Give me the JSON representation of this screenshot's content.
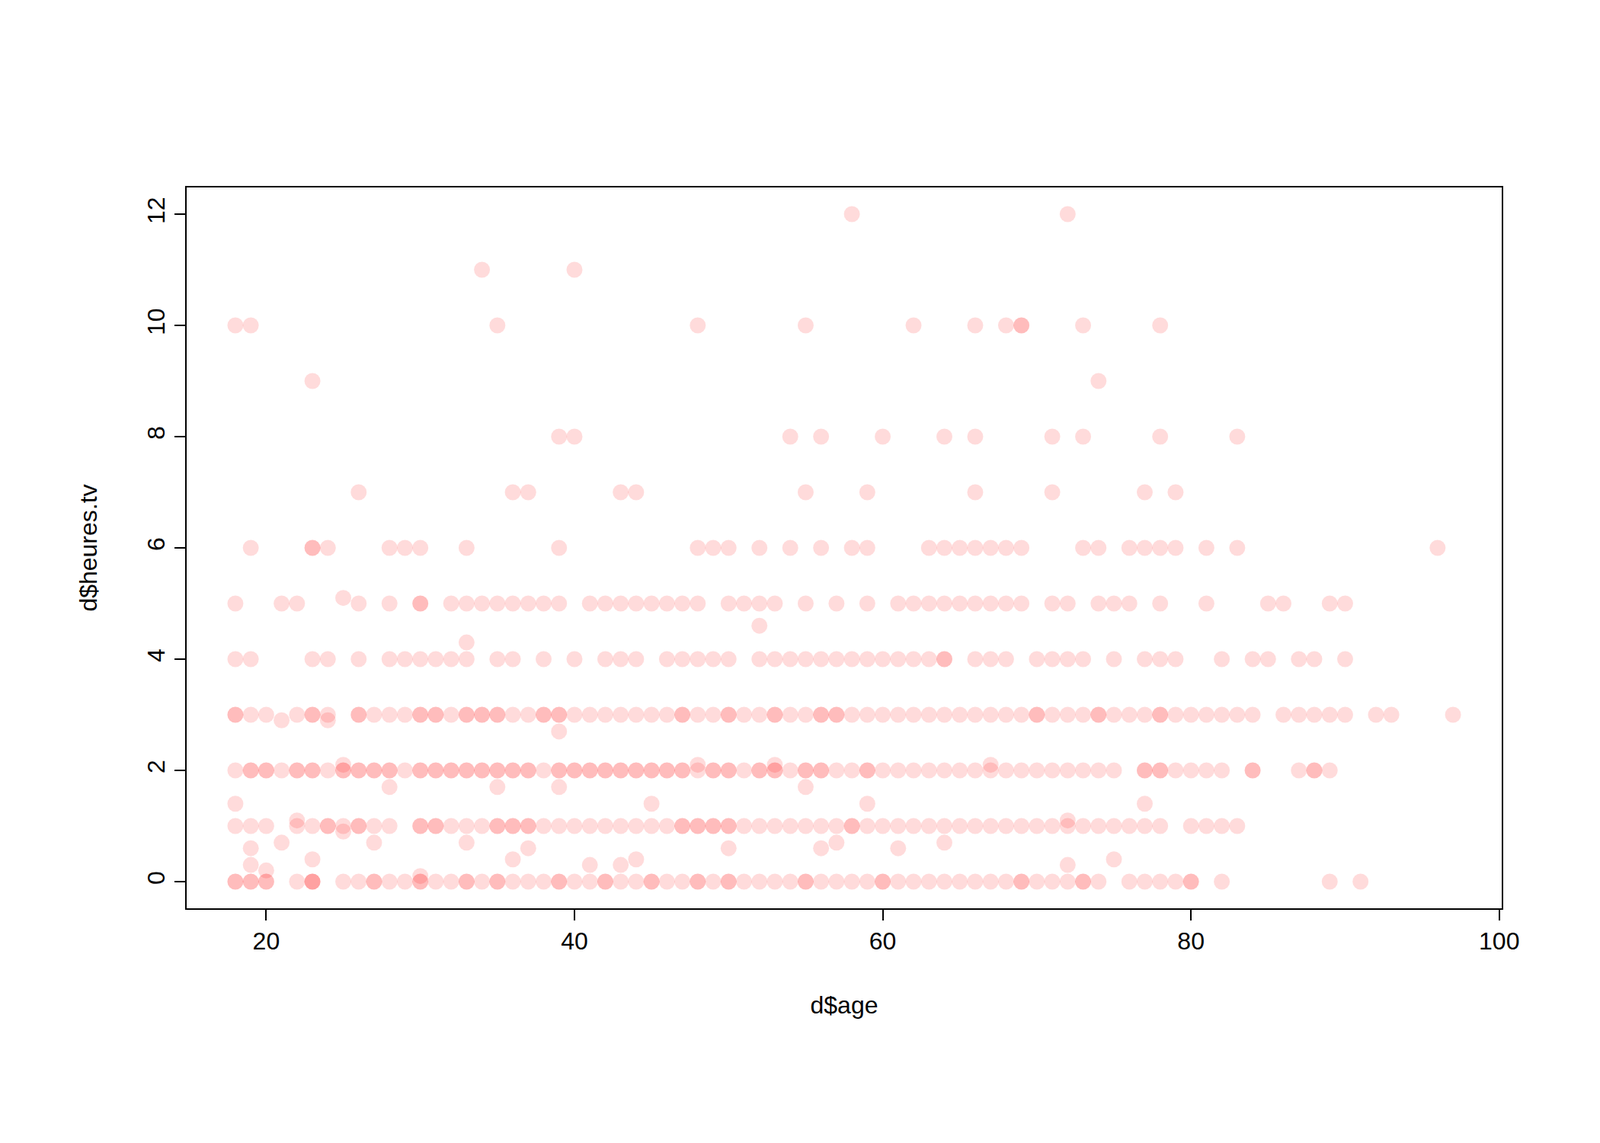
{
  "chart_data": {
    "type": "scatter",
    "x_label": "d$age",
    "y_label": "d$heures.tv",
    "color": "#ff0000",
    "marker": "circle",
    "grid": false,
    "xlim": [
      14.84,
      100.16
    ],
    "ylim": [
      -0.48,
      12.48
    ],
    "xticks": [
      20,
      40,
      60,
      80,
      100
    ],
    "yticks": [
      0,
      2,
      4,
      6,
      8,
      10,
      12
    ],
    "x": [
      18,
      18,
      19,
      19,
      20,
      20,
      22,
      23,
      23,
      23,
      25,
      26,
      27,
      27,
      28,
      29,
      30,
      30,
      31,
      32,
      33,
      33,
      34,
      35,
      35,
      36,
      37,
      38,
      39,
      39,
      40,
      41,
      42,
      42,
      43,
      44,
      45,
      45,
      46,
      47,
      48,
      48,
      49,
      50,
      50,
      51,
      52,
      53,
      54,
      55,
      55,
      56,
      57,
      58,
      59,
      60,
      60,
      61,
      62,
      63,
      64,
      65,
      66,
      67,
      68,
      69,
      69,
      70,
      71,
      72,
      73,
      73,
      74,
      76,
      77,
      78,
      79,
      80,
      80,
      82,
      89,
      91,
      18,
      19,
      20,
      22,
      23,
      24,
      24,
      25,
      26,
      26,
      27,
      28,
      30,
      30,
      31,
      31,
      32,
      33,
      34,
      35,
      35,
      36,
      36,
      37,
      37,
      38,
      39,
      40,
      41,
      42,
      43,
      44,
      45,
      46,
      47,
      47,
      48,
      48,
      49,
      49,
      50,
      50,
      51,
      52,
      53,
      54,
      55,
      56,
      57,
      58,
      58,
      59,
      60,
      61,
      62,
      63,
      64,
      65,
      66,
      67,
      68,
      69,
      70,
      71,
      72,
      73,
      74,
      75,
      76,
      77,
      78,
      80,
      81,
      82,
      83,
      18,
      19,
      19,
      20,
      20,
      21,
      22,
      22,
      23,
      23,
      24,
      25,
      25,
      26,
      26,
      27,
      27,
      28,
      28,
      29,
      30,
      30,
      31,
      31,
      32,
      32,
      33,
      33,
      34,
      34,
      35,
      35,
      36,
      36,
      37,
      37,
      38,
      39,
      39,
      40,
      40,
      41,
      41,
      42,
      42,
      43,
      43,
      44,
      44,
      45,
      45,
      46,
      46,
      47,
      47,
      48,
      49,
      49,
      50,
      50,
      51,
      52,
      52,
      53,
      53,
      54,
      55,
      55,
      56,
      56,
      57,
      58,
      59,
      59,
      60,
      61,
      62,
      63,
      64,
      65,
      66,
      67,
      68,
      69,
      70,
      71,
      72,
      73,
      74,
      75,
      77,
      77,
      78,
      78,
      79,
      80,
      81,
      82,
      84,
      84,
      87,
      88,
      88,
      89,
      18,
      18,
      19,
      20,
      22,
      23,
      23,
      24,
      26,
      26,
      27,
      28,
      29,
      30,
      30,
      31,
      31,
      32,
      33,
      33,
      34,
      34,
      35,
      35,
      36,
      37,
      38,
      38,
      39,
      39,
      40,
      41,
      42,
      43,
      44,
      45,
      46,
      47,
      47,
      48,
      49,
      50,
      50,
      51,
      52,
      53,
      53,
      54,
      55,
      56,
      56,
      57,
      57,
      58,
      59,
      60,
      61,
      62,
      63,
      64,
      65,
      66,
      67,
      68,
      69,
      70,
      70,
      71,
      72,
      73,
      74,
      74,
      75,
      76,
      77,
      78,
      78,
      79,
      80,
      81,
      82,
      83,
      84,
      86,
      87,
      88,
      89,
      90,
      92,
      93,
      97,
      18,
      19,
      23,
      24,
      26,
      28,
      29,
      30,
      31,
      32,
      33,
      35,
      36,
      38,
      40,
      42,
      43,
      44,
      46,
      47,
      48,
      49,
      50,
      52,
      53,
      54,
      55,
      56,
      57,
      58,
      59,
      60,
      61,
      62,
      63,
      64,
      64,
      66,
      67,
      68,
      70,
      71,
      72,
      73,
      75,
      77,
      78,
      79,
      82,
      84,
      85,
      87,
      88,
      90,
      18,
      21,
      22,
      26,
      28,
      30,
      30,
      32,
      33,
      34,
      35,
      36,
      37,
      38,
      39,
      41,
      42,
      43,
      44,
      45,
      46,
      47,
      48,
      50,
      51,
      52,
      53,
      55,
      57,
      59,
      61,
      62,
      63,
      64,
      65,
      66,
      67,
      68,
      69,
      71,
      72,
      74,
      75,
      76,
      78,
      81,
      85,
      86,
      89,
      90,
      19,
      23,
      23,
      24,
      28,
      29,
      30,
      33,
      39,
      48,
      49,
      50,
      52,
      54,
      56,
      58,
      59,
      63,
      64,
      65,
      66,
      67,
      68,
      69,
      73,
      74,
      76,
      77,
      78,
      79,
      81,
      83,
      96,
      26,
      36,
      37,
      43,
      44,
      55,
      59,
      66,
      71,
      77,
      79,
      39,
      40,
      54,
      56,
      60,
      64,
      66,
      71,
      73,
      78,
      83,
      23,
      74,
      18,
      19,
      35,
      48,
      55,
      62,
      66,
      68,
      69,
      69,
      73,
      78,
      34,
      40,
      58,
      72,
      18,
      19,
      19,
      20,
      21,
      21,
      22,
      24,
      25,
      25,
      25,
      27,
      28,
      33,
      33,
      35,
      37,
      39,
      39,
      41,
      44,
      45,
      50,
      52,
      55,
      56,
      57,
      59,
      61,
      64,
      67,
      72,
      75,
      77,
      72,
      48,
      53,
      23,
      30,
      36,
      43
    ],
    "values": [
      0,
      0,
      0,
      0,
      0,
      0,
      0,
      0,
      0,
      0,
      0,
      0,
      0,
      0,
      0,
      0,
      0,
      0,
      0,
      0,
      0,
      0,
      0,
      0,
      0,
      0,
      0,
      0,
      0,
      0,
      0,
      0,
      0,
      0,
      0,
      0,
      0,
      0,
      0,
      0,
      0,
      0,
      0,
      0,
      0,
      0,
      0,
      0,
      0,
      0,
      0,
      0,
      0,
      0,
      0,
      0,
      0,
      0,
      0,
      0,
      0,
      0,
      0,
      0,
      0,
      0,
      0,
      0,
      0,
      0,
      0,
      0,
      0,
      0,
      0,
      0,
      0,
      0,
      0,
      0,
      0,
      0,
      1,
      1,
      1,
      1,
      1,
      1,
      1,
      1,
      1,
      1,
      1,
      1,
      1,
      1,
      1,
      1,
      1,
      1,
      1,
      1,
      1,
      1,
      1,
      1,
      1,
      1,
      1,
      1,
      1,
      1,
      1,
      1,
      1,
      1,
      1,
      1,
      1,
      1,
      1,
      1,
      1,
      1,
      1,
      1,
      1,
      1,
      1,
      1,
      1,
      1,
      1,
      1,
      1,
      1,
      1,
      1,
      1,
      1,
      1,
      1,
      1,
      1,
      1,
      1,
      1,
      1,
      1,
      1,
      1,
      1,
      1,
      1,
      1,
      1,
      1,
      2,
      2,
      2,
      2,
      2,
      2,
      2,
      2,
      2,
      2,
      2,
      2,
      2,
      2,
      2,
      2,
      2,
      2,
      2,
      2,
      2,
      2,
      2,
      2,
      2,
      2,
      2,
      2,
      2,
      2,
      2,
      2,
      2,
      2,
      2,
      2,
      2,
      2,
      2,
      2,
      2,
      2,
      2,
      2,
      2,
      2,
      2,
      2,
      2,
      2,
      2,
      2,
      2,
      2,
      2,
      2,
      2,
      2,
      2,
      2,
      2,
      2,
      2,
      2,
      2,
      2,
      2,
      2,
      2,
      2,
      2,
      2,
      2,
      2,
      2,
      2,
      2,
      2,
      2,
      2,
      2,
      2,
      2,
      2,
      2,
      2,
      2,
      2,
      2,
      2,
      2,
      2,
      2,
      2,
      2,
      2,
      2,
      2,
      2,
      2,
      2,
      2,
      2,
      2,
      3,
      3,
      3,
      3,
      3,
      3,
      3,
      3,
      3,
      3,
      3,
      3,
      3,
      3,
      3,
      3,
      3,
      3,
      3,
      3,
      3,
      3,
      3,
      3,
      3,
      3,
      3,
      3,
      3,
      3,
      3,
      3,
      3,
      3,
      3,
      3,
      3,
      3,
      3,
      3,
      3,
      3,
      3,
      3,
      3,
      3,
      3,
      3,
      3,
      3,
      3,
      3,
      3,
      3,
      3,
      3,
      3,
      3,
      3,
      3,
      3,
      3,
      3,
      3,
      3,
      3,
      3,
      3,
      3,
      3,
      3,
      3,
      3,
      3,
      3,
      3,
      3,
      3,
      3,
      3,
      3,
      3,
      3,
      3,
      3,
      3,
      3,
      3,
      3,
      3,
      3,
      4,
      4,
      4,
      4,
      4,
      4,
      4,
      4,
      4,
      4,
      4,
      4,
      4,
      4,
      4,
      4,
      4,
      4,
      4,
      4,
      4,
      4,
      4,
      4,
      4,
      4,
      4,
      4,
      4,
      4,
      4,
      4,
      4,
      4,
      4,
      4,
      4,
      4,
      4,
      4,
      4,
      4,
      4,
      4,
      4,
      4,
      4,
      4,
      4,
      4,
      4,
      4,
      4,
      4,
      5,
      5,
      5,
      5,
      5,
      5,
      5,
      5,
      5,
      5,
      5,
      5,
      5,
      5,
      5,
      5,
      5,
      5,
      5,
      5,
      5,
      5,
      5,
      5,
      5,
      5,
      5,
      5,
      5,
      5,
      5,
      5,
      5,
      5,
      5,
      5,
      5,
      5,
      5,
      5,
      5,
      5,
      5,
      5,
      5,
      5,
      5,
      5,
      5,
      5,
      6,
      6,
      6,
      6,
      6,
      6,
      6,
      6,
      6,
      6,
      6,
      6,
      6,
      6,
      6,
      6,
      6,
      6,
      6,
      6,
      6,
      6,
      6,
      6,
      6,
      6,
      6,
      6,
      6,
      6,
      6,
      6,
      6,
      7,
      7,
      7,
      7,
      7,
      7,
      7,
      7,
      7,
      7,
      7,
      8,
      8,
      8,
      8,
      8,
      8,
      8,
      8,
      8,
      8,
      8,
      9,
      9,
      10,
      10,
      10,
      10,
      10,
      10,
      10,
      10,
      10,
      10,
      10,
      10,
      11,
      11,
      12,
      12,
      1.4,
      0.6,
      0.3,
      0.2,
      0.7,
      2.9,
      1.1,
      2.9,
      5.1,
      0.9,
      2.1,
      0.7,
      1.7,
      4.3,
      0.7,
      1.7,
      0.6,
      2.7,
      1.7,
      0.3,
      0.4,
      1.4,
      0.6,
      4.6,
      1.7,
      0.6,
      0.7,
      1.4,
      0.6,
      0.7,
      2.1,
      1.1,
      0.4,
      1.4,
      0.3,
      2.1,
      2.1,
      0.4,
      0.1,
      0.4,
      0.3
    ]
  }
}
